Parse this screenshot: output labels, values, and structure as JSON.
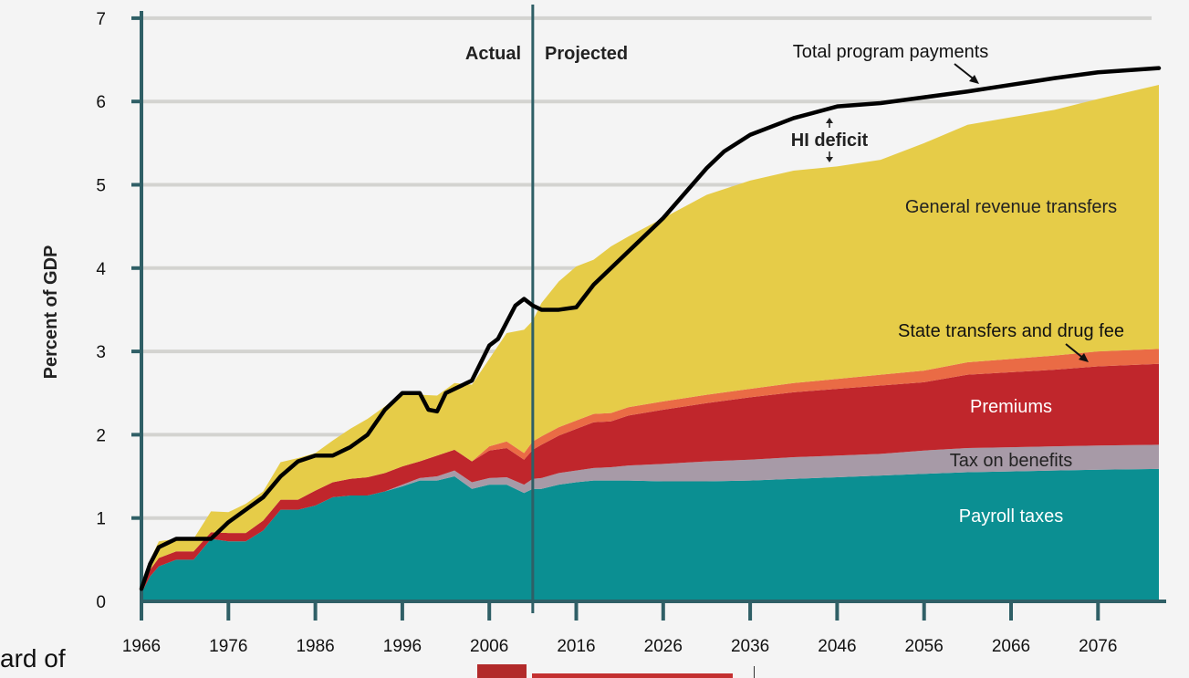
{
  "chart_data": {
    "type": "area",
    "ylabel": "Percent of GDP",
    "xlabel": "",
    "ylim": [
      0,
      7
    ],
    "xlim": [
      1966,
      2083
    ],
    "y_ticks": [
      "0",
      "1",
      "2",
      "3",
      "4",
      "5",
      "6",
      "7"
    ],
    "x_ticks": [
      "1966",
      "1976",
      "1986",
      "1996",
      "2006",
      "2016",
      "2026",
      "2036",
      "2046",
      "2056",
      "2066",
      "2076"
    ],
    "grid": "horizontal",
    "divider_year": 2011,
    "divider_labels": {
      "actual": "Actual",
      "projected": "Projected"
    },
    "x": [
      1966,
      1967,
      1968,
      1970,
      1972,
      1974,
      1976,
      1978,
      1980,
      1982,
      1984,
      1986,
      1988,
      1990,
      1992,
      1994,
      1996,
      1998,
      2000,
      2002,
      2004,
      2006,
      2008,
      2010,
      2011,
      2012,
      2014,
      2016,
      2018,
      2020,
      2022,
      2026,
      2031,
      2036,
      2041,
      2046,
      2051,
      2056,
      2061,
      2066,
      2071,
      2076,
      2083
    ],
    "series": [
      {
        "name": "Payroll taxes",
        "color": "#0b8f92",
        "values": [
          0.1,
          0.3,
          0.42,
          0.5,
          0.5,
          0.75,
          0.72,
          0.72,
          0.85,
          1.1,
          1.1,
          1.15,
          1.25,
          1.27,
          1.27,
          1.32,
          1.38,
          1.45,
          1.45,
          1.5,
          1.35,
          1.4,
          1.4,
          1.3,
          1.35,
          1.35,
          1.4,
          1.43,
          1.45,
          1.45,
          1.45,
          1.44,
          1.44,
          1.45,
          1.47,
          1.49,
          1.51,
          1.53,
          1.55,
          1.56,
          1.57,
          1.58,
          1.59
        ]
      },
      {
        "name": "Tax on benefits",
        "color": "#a79aa7",
        "values": [
          0,
          0,
          0,
          0,
          0,
          0,
          0,
          0,
          0,
          0,
          0,
          0,
          0,
          0,
          0,
          0,
          0.02,
          0.03,
          0.05,
          0.07,
          0.08,
          0.08,
          0.09,
          0.1,
          0.12,
          0.13,
          0.14,
          0.14,
          0.15,
          0.16,
          0.18,
          0.21,
          0.24,
          0.25,
          0.26,
          0.26,
          0.26,
          0.28,
          0.29,
          0.29,
          0.29,
          0.29,
          0.29
        ]
      },
      {
        "name": "Premiums",
        "color": "#c0262c",
        "values": [
          0,
          0.08,
          0.1,
          0.1,
          0.1,
          0.08,
          0.1,
          0.1,
          0.12,
          0.12,
          0.12,
          0.18,
          0.18,
          0.2,
          0.22,
          0.22,
          0.22,
          0.2,
          0.25,
          0.25,
          0.25,
          0.33,
          0.35,
          0.3,
          0.35,
          0.4,
          0.45,
          0.5,
          0.55,
          0.55,
          0.6,
          0.65,
          0.7,
          0.75,
          0.78,
          0.8,
          0.82,
          0.82,
          0.88,
          0.9,
          0.92,
          0.95,
          0.97
        ]
      },
      {
        "name": "State transfers and drug fee",
        "color": "#ea6b45",
        "values": [
          0,
          0,
          0,
          0,
          0,
          0,
          0,
          0,
          0,
          0,
          0,
          0,
          0,
          0,
          0,
          0,
          0,
          0,
          0,
          0,
          0,
          0.05,
          0.08,
          0.08,
          0.1,
          0.1,
          0.1,
          0.1,
          0.1,
          0.1,
          0.1,
          0.1,
          0.1,
          0.1,
          0.11,
          0.12,
          0.13,
          0.14,
          0.15,
          0.16,
          0.17,
          0.18,
          0.18
        ]
      },
      {
        "name": "General revenue transfers",
        "color": "#e6cc48",
        "values": [
          0.05,
          0.12,
          0.2,
          0.15,
          0.15,
          0.25,
          0.25,
          0.35,
          0.35,
          0.45,
          0.5,
          0.45,
          0.5,
          0.6,
          0.7,
          0.8,
          0.88,
          0.8,
          0.72,
          0.8,
          0.92,
          1.05,
          1.3,
          1.48,
          1.45,
          1.6,
          1.75,
          1.85,
          1.85,
          2.0,
          2.05,
          2.2,
          2.4,
          2.5,
          2.55,
          2.55,
          2.58,
          2.73,
          2.85,
          2.9,
          2.95,
          3.03,
          3.17
        ]
      }
    ],
    "total_program_payments": {
      "name": "Total program payments",
      "color": "#000000",
      "x": [
        1966,
        1967,
        1968,
        1969,
        1970,
        1972,
        1974,
        1976,
        1978,
        1980,
        1982,
        1984,
        1986,
        1988,
        1990,
        1992,
        1994,
        1996,
        1998,
        1999,
        2000,
        2001,
        2002,
        2004,
        2006,
        2007,
        2009,
        2010,
        2011,
        2012,
        2014,
        2016,
        2018,
        2020,
        2022,
        2026,
        2031,
        2033,
        2036,
        2041,
        2046,
        2051,
        2056,
        2061,
        2066,
        2071,
        2076,
        2083
      ],
      "values": [
        0.15,
        0.45,
        0.65,
        0.7,
        0.75,
        0.75,
        0.75,
        0.95,
        1.1,
        1.25,
        1.5,
        1.68,
        1.75,
        1.75,
        1.85,
        2.0,
        2.3,
        2.5,
        2.5,
        2.3,
        2.28,
        2.5,
        2.55,
        2.65,
        3.07,
        3.15,
        3.55,
        3.63,
        3.55,
        3.5,
        3.5,
        3.53,
        3.8,
        4.0,
        4.2,
        4.6,
        5.2,
        5.4,
        5.6,
        5.8,
        5.94,
        5.98,
        6.05,
        6.12,
        6.2,
        6.28,
        6.35,
        6.4
      ]
    },
    "annotations": [
      {
        "text": "Total program payments"
      },
      {
        "text": "HI deficit"
      },
      {
        "text": "General revenue transfers"
      },
      {
        "text": "State transfers and drug fee"
      },
      {
        "text": "Premiums"
      },
      {
        "text": "Tax on benefits"
      },
      {
        "text": "Payroll taxes"
      }
    ]
  },
  "footer": {
    "text_fragment": "ard of"
  }
}
